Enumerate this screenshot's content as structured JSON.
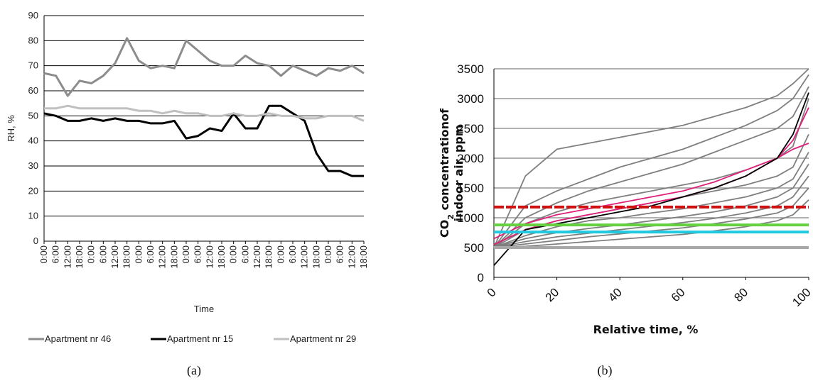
{
  "chart_data": [
    {
      "panel": "(a)",
      "type": "line",
      "xlabel": "Time",
      "ylabel": "RH, %",
      "ylim": [
        0,
        90
      ],
      "yticks": [
        "0",
        "10",
        "20",
        "30",
        "40",
        "50",
        "60",
        "70",
        "80",
        "90"
      ],
      "x": [
        "0:00",
        "6:00",
        "12:00",
        "18:00",
        "0:00",
        "6:00",
        "12:00",
        "18:00",
        "0:00",
        "6:00",
        "12:00",
        "18:00",
        "0:00",
        "6:00",
        "12:00",
        "18:00",
        "0:00",
        "6:00",
        "12:00",
        "18:00",
        "0:00",
        "6:00",
        "12:00",
        "18:00",
        "0:00",
        "6:00",
        "12:00",
        "18:00"
      ],
      "grid": true,
      "legend_position": "bottom",
      "series": [
        {
          "name": "Apartment nr 46",
          "color": "#8c8c8c",
          "values": [
            67,
            66,
            58,
            64,
            63,
            66,
            71,
            81,
            72,
            69,
            70,
            69,
            80,
            76,
            72,
            70,
            70,
            74,
            71,
            70,
            66,
            70,
            68,
            66,
            69,
            68,
            70,
            67
          ]
        },
        {
          "name": "Apartment nr 15",
          "color": "#000000",
          "values": [
            51,
            50,
            48,
            48,
            49,
            48,
            49,
            48,
            48,
            47,
            47,
            48,
            41,
            42,
            45,
            44,
            51,
            45,
            45,
            54,
            54,
            51,
            48,
            35,
            28,
            28,
            26,
            26
          ]
        },
        {
          "name": "Apartment nr 29",
          "color": "#c0c0c0",
          "values": [
            53,
            53,
            54,
            53,
            53,
            53,
            53,
            53,
            52,
            52,
            51,
            52,
            51,
            51,
            50,
            50,
            51,
            50,
            50,
            51,
            50,
            50,
            49,
            49,
            50,
            50,
            50,
            48
          ]
        }
      ]
    },
    {
      "panel": "(b)",
      "type": "line",
      "xlabel": "Relative time, %",
      "ylabel_line1": "CO2 concentrationof",
      "ylabel_sub": "2",
      "ylabel_line2": "indoor air, ppm",
      "ylim": [
        0,
        3500
      ],
      "yticks": [
        "0",
        "500",
        "1000",
        "1500",
        "2000",
        "2500",
        "3000",
        "3500"
      ],
      "xlim": [
        0,
        100
      ],
      "xticks": [
        "0",
        "20",
        "40",
        "60",
        "80",
        "100"
      ],
      "grid": true,
      "x": [
        0,
        10,
        20,
        30,
        40,
        50,
        60,
        70,
        80,
        90,
        95,
        100
      ],
      "series": [
        {
          "color": "#7f7f7f",
          "values": [
            500,
            1700,
            2150,
            2250,
            2350,
            2450,
            2550,
            2700,
            2850,
            3050,
            3250,
            3500
          ]
        },
        {
          "color": "#7f7f7f",
          "values": [
            500,
            1200,
            1450,
            1650,
            1850,
            2000,
            2150,
            2350,
            2550,
            2800,
            3000,
            3400
          ]
        },
        {
          "color": "#7f7f7f",
          "values": [
            500,
            1000,
            1250,
            1450,
            1600,
            1750,
            1900,
            2100,
            2300,
            2500,
            2700,
            3200
          ]
        },
        {
          "color": "#7f7f7f",
          "values": [
            500,
            900,
            1100,
            1250,
            1350,
            1450,
            1550,
            1650,
            1800,
            2000,
            2200,
            3000
          ]
        },
        {
          "color": "#7f7f7f",
          "values": [
            500,
            800,
            950,
            1050,
            1150,
            1250,
            1350,
            1450,
            1550,
            1700,
            1850,
            2400
          ]
        },
        {
          "color": "#7f7f7f",
          "values": [
            500,
            700,
            850,
            950,
            1000,
            1080,
            1150,
            1250,
            1350,
            1500,
            1650,
            2100
          ]
        },
        {
          "color": "#7f7f7f",
          "values": [
            500,
            650,
            750,
            820,
            880,
            950,
            1020,
            1100,
            1200,
            1350,
            1500,
            1900
          ]
        },
        {
          "color": "#7f7f7f",
          "values": [
            500,
            600,
            680,
            740,
            800,
            860,
            920,
            990,
            1080,
            1200,
            1350,
            1700
          ]
        },
        {
          "color": "#7f7f7f",
          "values": [
            500,
            560,
            620,
            680,
            730,
            780,
            830,
            900,
            980,
            1080,
            1200,
            1500
          ]
        },
        {
          "color": "#7f7f7f",
          "values": [
            500,
            520,
            560,
            600,
            640,
            680,
            720,
            780,
            850,
            950,
            1050,
            1300
          ]
        },
        {
          "color": "#e0207a",
          "values": [
            650,
            900,
            1050,
            1150,
            1250,
            1350,
            1450,
            1600,
            1800,
            2000,
            2150,
            2250
          ]
        },
        {
          "color": "#e0207a",
          "values": [
            550,
            800,
            950,
            1050,
            1150,
            1250,
            1350,
            1500,
            1700,
            2000,
            2300,
            2850
          ]
        },
        {
          "color": "#000000",
          "values": [
            200,
            800,
            900,
            1000,
            1100,
            1200,
            1350,
            1500,
            1700,
            2000,
            2400,
            3100
          ]
        },
        {
          "color": "#d11010",
          "values": [
            1180,
            1180,
            1180,
            1180,
            1180,
            1180,
            1180,
            1180,
            1180,
            1180,
            1180,
            1180
          ]
        },
        {
          "color": "#66d040",
          "values": [
            880,
            880,
            880,
            880,
            880,
            880,
            880,
            880,
            880,
            880,
            880,
            880
          ]
        },
        {
          "color": "#20c8e0",
          "values": [
            760,
            760,
            760,
            760,
            760,
            760,
            760,
            760,
            760,
            760,
            760,
            760
          ]
        },
        {
          "color": "#a8a8a8",
          "values": [
            500,
            500,
            500,
            500,
            500,
            500,
            500,
            500,
            500,
            500,
            500,
            500
          ]
        }
      ]
    }
  ],
  "captions": {
    "a": "(a)",
    "b": "(b)"
  },
  "colors": {
    "grid_a": "#000000",
    "grid_b": "#808080"
  }
}
